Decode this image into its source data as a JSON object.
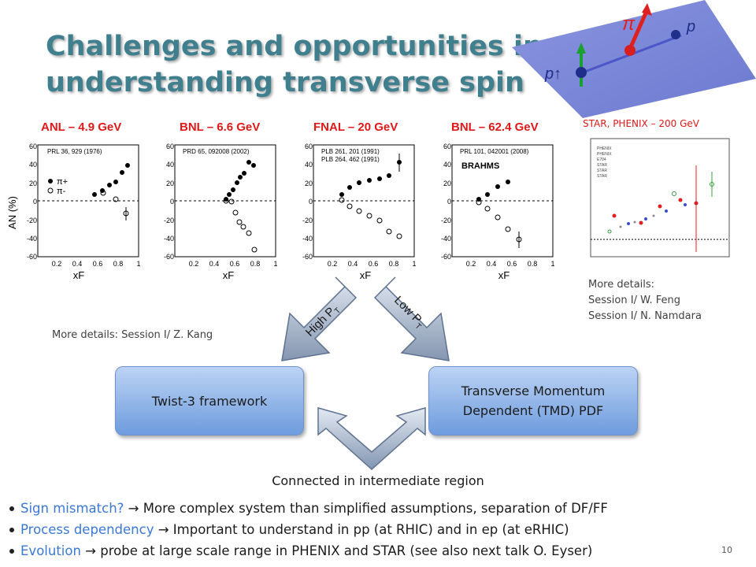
{
  "slide": {
    "title": "Challenges and opportunities in understanding transverse spin",
    "page_number": "10"
  },
  "figure": {
    "labels": {
      "pi": "π",
      "p": "p",
      "p_polarized": "p↑"
    }
  },
  "panels": [
    {
      "title": "ANL – 4.9 GeV",
      "ref": "PRL 36, 929 (1976)",
      "legend_plus": "π+",
      "legend_minus": "π-"
    },
    {
      "title": "BNL – 6.6 GeV",
      "ref": "PRD 65, 092008 (2002)"
    },
    {
      "title": "FNAL – 20 GeV",
      "ref1": "PLB 261, 201 (1991)",
      "ref2": "PLB 264, 462 (1991)"
    },
    {
      "title": "BNL – 62.4 GeV",
      "ref": "PRL 101, 042001 (2008)",
      "tag": "BRAHMS"
    }
  ],
  "axes": {
    "ylabel": "AN (%)",
    "xlabel": "xF",
    "yticks": [
      "60",
      "40",
      "20",
      "0",
      "-20",
      "-40",
      "-60"
    ],
    "xticks": [
      "0.2",
      "0.4",
      "0.6",
      "0.8",
      "1"
    ]
  },
  "star_panel": {
    "title": "STAR, PHENIX – 200 GeV",
    "details": [
      "More details:",
      "Session I/ W. Feng",
      "Session I/ N. Namdara"
    ]
  },
  "arrows": {
    "high": "High P",
    "low": "Low P",
    "sub": "T"
  },
  "kang_note": "More details: Session I/ Z. Kang",
  "twist3": "Twist-3 framework",
  "tmd": [
    "Transverse Momentum",
    "Dependent (TMD) PDF"
  ],
  "connected": "Connected in intermediate region",
  "bullets": [
    {
      "highlight": "Sign mismatch?",
      "rest": " → More complex system than simplified assumptions, separation of DF/FF"
    },
    {
      "highlight": "Process dependency",
      "rest": " → Important to understand in pp (at RHIC) and in ep (at eRHIC)"
    },
    {
      "highlight": "Evolution",
      "rest": " → probe at large scale range in PHENIX and STAR (see also next talk O. Eyser)"
    }
  ],
  "colors": {
    "title": "#3f7f8e",
    "panel_title": "#e01818",
    "highlight": "#3a78d6",
    "box": "#8fb4ea"
  }
}
